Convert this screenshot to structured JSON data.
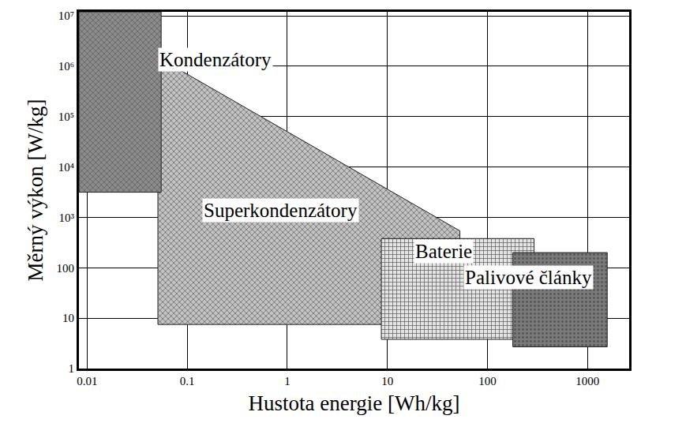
{
  "chart_data": {
    "type": "area",
    "x_label": "Hustota energie [Wh/kg]",
    "y_label": "Měrný výkon [W/kg]",
    "log": true,
    "grid": true,
    "xlim": [
      0.0083,
      2600
    ],
    "ylim": [
      1,
      12000000
    ],
    "xticks": [
      0.01,
      0.1,
      1,
      10,
      100,
      1000
    ],
    "yticks": [
      1,
      10,
      100,
      {
        "value": 1000,
        "label": "10³"
      },
      {
        "value": 10000,
        "label": "10⁴"
      },
      {
        "value": 100000,
        "label": "10⁵"
      },
      {
        "value": 1000000,
        "label": "10⁶"
      },
      {
        "value": 10000000,
        "label": "10⁷"
      }
    ],
    "series": [
      {
        "name": "Superkondenzátory",
        "color": "#c4c4c4",
        "x": [
          0.051,
          0.051,
          53,
          53,
          0.051
        ],
        "y": [
          7.5,
          1500000,
          540,
          7.5,
          7.5
        ]
      },
      {
        "name": "Kondenzátory",
        "color": "#8c8c8c",
        "x": [
          0.0083,
          0.0083,
          0.055,
          0.055,
          0.0083
        ],
        "y": [
          3160,
          12000000,
          12000000,
          3160,
          3160
        ]
      },
      {
        "name": "Baterie",
        "color": "#e4e4e4",
        "x": [
          8.7,
          8.7,
          292,
          292,
          8.7
        ],
        "y": [
          3.8,
          380,
          380,
          3.8,
          3.8
        ]
      },
      {
        "name": "Palivové články",
        "color": "#7a7a7a",
        "x": [
          179,
          179,
          1570,
          1570,
          179
        ],
        "y": [
          2.7,
          200,
          200,
          2.7,
          2.7
        ]
      }
    ]
  }
}
